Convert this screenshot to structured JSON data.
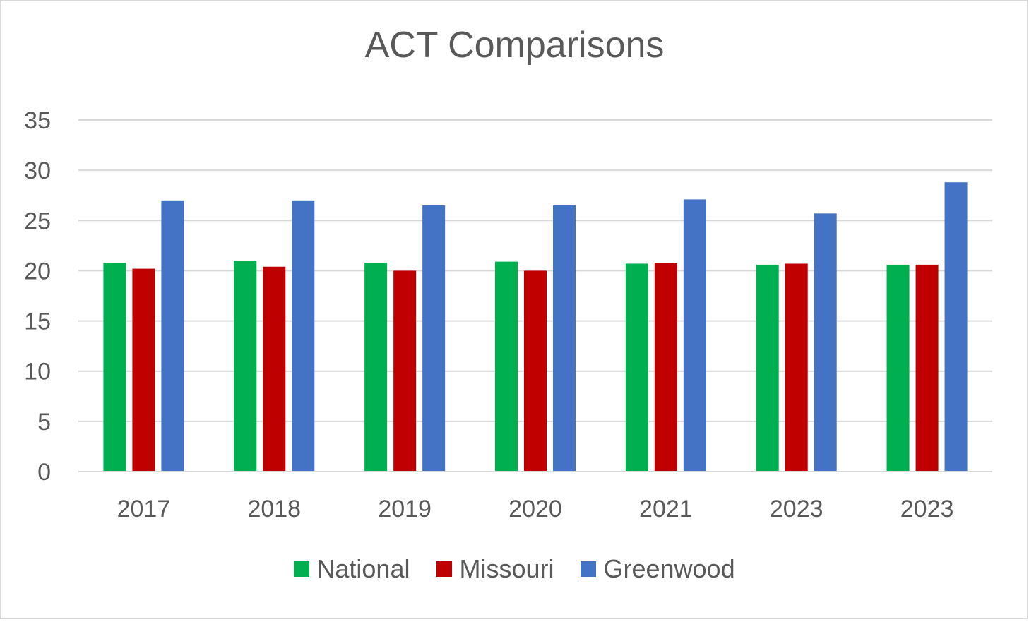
{
  "chart_data": {
    "type": "bar",
    "title": "ACT Comparisons",
    "categories": [
      "2017",
      "2018",
      "2019",
      "2020",
      "2021",
      "2023",
      "2023"
    ],
    "series": [
      {
        "name": "National",
        "color": "#00b050",
        "values": [
          20.8,
          21.0,
          20.8,
          20.9,
          20.7,
          20.6,
          20.6
        ]
      },
      {
        "name": "Missouri",
        "color": "#c00000",
        "values": [
          20.2,
          20.4,
          20.0,
          20.0,
          20.8,
          20.7,
          20.6
        ]
      },
      {
        "name": "Greenwood",
        "color": "#4472c4",
        "values": [
          27.0,
          27.0,
          26.5,
          26.5,
          27.1,
          25.7,
          28.8
        ]
      }
    ],
    "ylim": [
      0,
      35
    ],
    "yticks": [
      0,
      5,
      10,
      15,
      20,
      25,
      30,
      35
    ],
    "xlabel": "",
    "ylabel": "",
    "grid": true,
    "legend_position": "bottom"
  }
}
